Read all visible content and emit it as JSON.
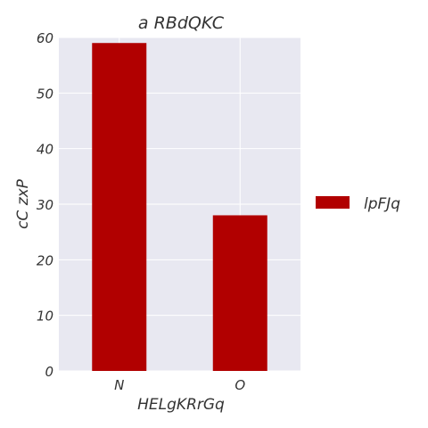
{
  "chart_data": {
    "type": "bar",
    "title": "a RBdQKC",
    "xlabel": "HELgKRrGq",
    "ylabel": "cC  zxP",
    "categories": [
      "N",
      "O"
    ],
    "series": [
      {
        "name": "lpFJq",
        "values": [
          59,
          28
        ]
      }
    ],
    "ylim": [
      0,
      60
    ],
    "yticks": [
      0,
      10,
      20,
      30,
      40,
      50,
      60
    ],
    "grid": true,
    "legend_position": "right",
    "colors": {
      "bar": "#b10000",
      "plot_bg": "#e8e8f1",
      "grid": "#ffffff",
      "text": "#333333"
    }
  }
}
